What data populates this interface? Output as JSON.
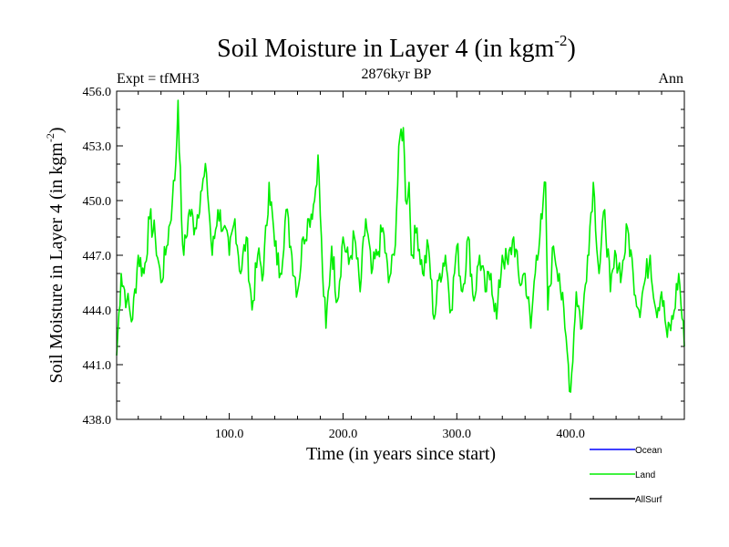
{
  "chart_data": {
    "type": "line",
    "title": "Soil Moisture in Layer 4 (in kgm",
    "title_exp": "-2",
    "title_close": ")",
    "subtitle": "2876kyr BP",
    "left_label": "Expt = tfMH3",
    "right_label": "Ann",
    "xlabel": "Time (in years since start)",
    "ylabel": "Soil Moisture in Layer 4 (in kgm",
    "ylabel_exp": "-2",
    "ylabel_close": ")",
    "xlim": [
      1,
      500
    ],
    "ylim": [
      438.0,
      456.0
    ],
    "xticks": [
      100,
      200,
      300,
      400
    ],
    "xtick_labels": [
      "100.0",
      "200.0",
      "300.0",
      "400.0"
    ],
    "yticks": [
      438,
      441,
      444,
      447,
      450,
      453,
      456
    ],
    "ytick_labels": [
      "438.0",
      "441.0",
      "444.0",
      "447.0",
      "450.0",
      "453.0",
      "456.0"
    ],
    "legend": [
      {
        "name": "Ocean",
        "color": "#0000ff"
      },
      {
        "name": "Land",
        "color": "#00ee00"
      },
      {
        "name": "AllSurf",
        "color": "#000000"
      }
    ],
    "series": [
      {
        "name": "Land",
        "color": "#00ee00",
        "x": [
          1,
          5,
          10,
          15,
          20,
          25,
          30,
          35,
          40,
          45,
          50,
          53,
          55,
          58,
          60,
          65,
          70,
          75,
          80,
          85,
          90,
          95,
          100,
          105,
          110,
          115,
          120,
          125,
          130,
          135,
          140,
          145,
          150,
          155,
          160,
          165,
          170,
          175,
          178,
          182,
          185,
          190,
          195,
          200,
          205,
          210,
          215,
          220,
          225,
          230,
          235,
          240,
          245,
          250,
          253,
          255,
          258,
          260,
          265,
          270,
          275,
          280,
          285,
          290,
          295,
          300,
          305,
          310,
          315,
          320,
          325,
          330,
          335,
          340,
          345,
          350,
          355,
          360,
          365,
          370,
          375,
          378,
          380,
          385,
          390,
          395,
          398,
          400,
          405,
          410,
          415,
          420,
          425,
          430,
          435,
          440,
          445,
          450,
          455,
          460,
          465,
          470,
          475,
          480,
          485,
          490,
          495,
          500
        ],
        "values": [
          441.5,
          446.0,
          444.5,
          443.5,
          447.0,
          446.0,
          449.0,
          448.0,
          445.5,
          447.5,
          450.0,
          452.0,
          455.5,
          449.0,
          447.0,
          449.5,
          448.5,
          450.5,
          451.5,
          447.0,
          449.5,
          448.5,
          447.0,
          449.0,
          446.0,
          448.0,
          444.0,
          447.0,
          446.0,
          451.0,
          447.5,
          446.0,
          449.5,
          447.0,
          445.0,
          448.0,
          449.0,
          450.0,
          452.5,
          446.0,
          443.0,
          447.5,
          444.5,
          448.0,
          446.5,
          448.0,
          445.0,
          449.0,
          446.0,
          447.0,
          448.5,
          445.5,
          447.0,
          453.5,
          454.0,
          450.0,
          451.0,
          447.0,
          448.5,
          446.0,
          447.5,
          443.5,
          446.0,
          447.0,
          444.0,
          447.5,
          445.0,
          448.0,
          444.5,
          447.0,
          445.0,
          446.0,
          443.5,
          447.0,
          446.5,
          448.0,
          445.5,
          446.0,
          443.0,
          447.0,
          449.0,
          451.0,
          444.0,
          447.5,
          446.0,
          443.0,
          441.0,
          439.5,
          445.0,
          443.0,
          447.0,
          451.0,
          446.0,
          449.5,
          445.0,
          447.0,
          446.0,
          448.5,
          446.0,
          444.0,
          445.5,
          447.0,
          444.0,
          445.0,
          442.5,
          443.5,
          446.0,
          442.0
        ]
      }
    ]
  }
}
